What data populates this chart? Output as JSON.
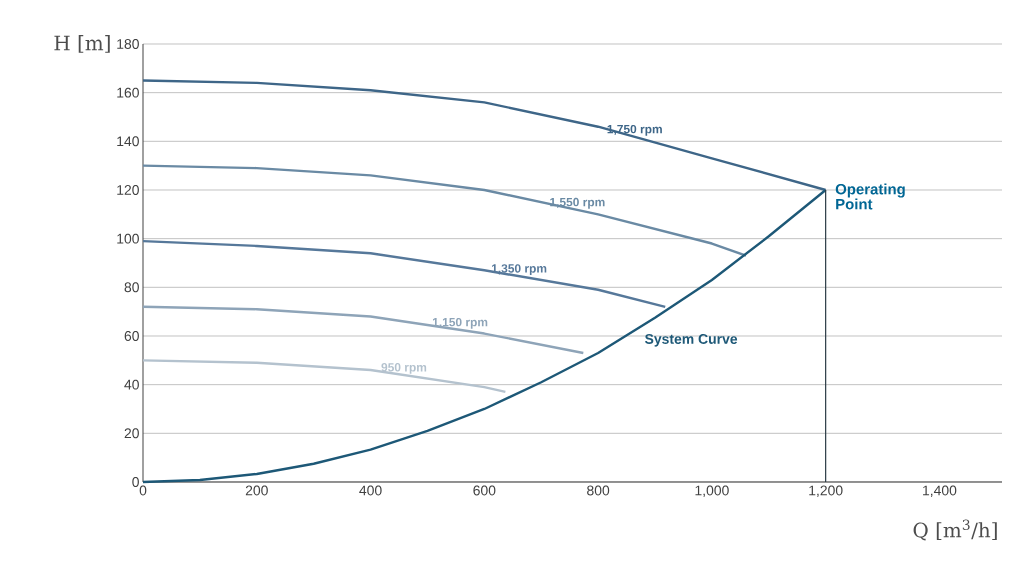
{
  "chart_data": {
    "type": "line",
    "xlabel": "Q [m$^{3}$/h]",
    "ylabel": "H [m]",
    "xlim": [
      0,
      1510
    ],
    "ylim": [
      0,
      180
    ],
    "xticks": [
      0,
      200,
      400,
      600,
      800,
      {
        "value": 1000,
        "label": "1,000"
      },
      {
        "value": 1200,
        "label": "1,200"
      },
      {
        "value": 1400,
        "label": "1,400"
      }
    ],
    "yticks": [
      0,
      20,
      40,
      60,
      80,
      100,
      120,
      140,
      160,
      180
    ],
    "grid": "y",
    "legend": false,
    "marker": "none",
    "line_style": "solid",
    "series": [
      {
        "name": "1,750 rpm",
        "color": "#3e6688",
        "x": [
          0,
          200,
          400,
          600,
          800,
          1000,
          1200
        ],
        "values": [
          165,
          164,
          161,
          156,
          146,
          133,
          120
        ]
      },
      {
        "name": "1,550 rpm",
        "color": "#6a8aa4",
        "x": [
          0,
          200,
          400,
          600,
          800,
          1000,
          1060
        ],
        "values": [
          130,
          129,
          126,
          120,
          110,
          98,
          93
        ]
      },
      {
        "name": "1,350 rpm",
        "color": "#56789a",
        "x": [
          0,
          200,
          400,
          600,
          800,
          918
        ],
        "values": [
          99,
          97,
          94,
          87,
          79,
          72
        ]
      },
      {
        "name": "1,150 rpm",
        "color": "#8ea4b8",
        "x": [
          0,
          200,
          400,
          600,
          774
        ],
        "values": [
          72,
          71,
          68,
          61,
          53
        ]
      },
      {
        "name": "950 rpm",
        "color": "#b4c2ce",
        "x": [
          0,
          200,
          400,
          600,
          637
        ],
        "values": [
          50,
          49,
          46,
          39,
          37
        ]
      },
      {
        "name": "System Curve",
        "color": "#1d5877",
        "x": [
          0,
          100,
          200,
          300,
          400,
          500,
          600,
          700,
          800,
          900,
          1000,
          1100,
          1200
        ],
        "values": [
          0,
          0.8,
          3.3,
          7.5,
          13.3,
          21,
          30,
          41,
          53,
          67.5,
          83,
          101,
          120
        ]
      },
      {
        "color": "#2a3a44",
        "x": [
          1200,
          1200
        ],
        "values": [
          0,
          120
        ]
      }
    ],
    "annotations": [
      {
        "text": "Operating Point",
        "x": 1200,
        "y": 120
      }
    ]
  }
}
